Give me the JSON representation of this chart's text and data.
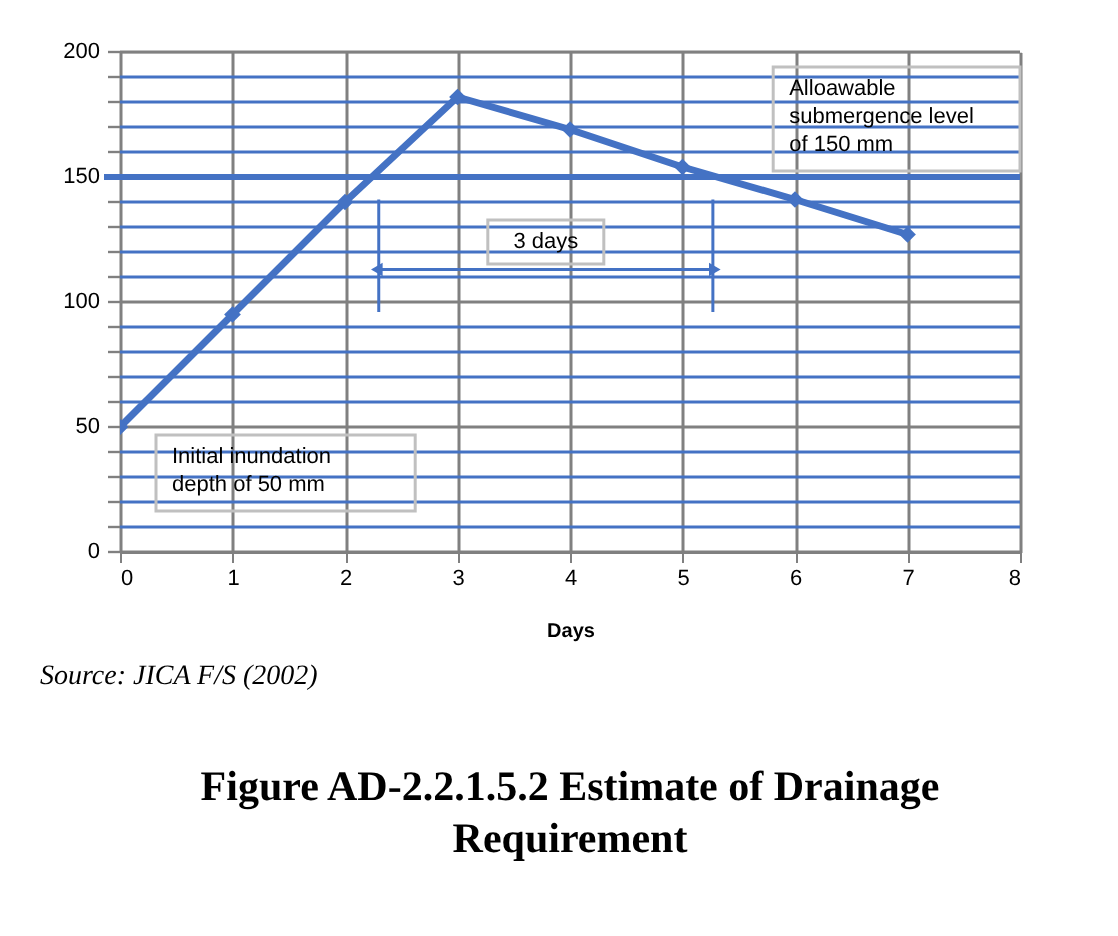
{
  "chart_data": {
    "type": "line",
    "title": "Figure AD-2.2.1.5.2   Estimate of Drainage\nRequirement",
    "xlabel": "Days",
    "x": [
      0,
      1,
      2,
      3,
      4,
      5,
      6,
      7
    ],
    "series": [
      {
        "color": "#4472c4",
        "values": [
          50,
          95,
          140,
          182,
          169,
          154,
          141,
          127
        ]
      }
    ],
    "xlim": [
      0,
      8
    ],
    "xticks": [
      0,
      1,
      2,
      3,
      4,
      5,
      6,
      7,
      8
    ],
    "ylim": [
      0,
      200
    ],
    "yticks": [
      0,
      {
        "value": 10,
        "label": null
      },
      {
        "value": 20,
        "label": null
      },
      {
        "value": 30,
        "label": null
      },
      {
        "value": 40,
        "label": null
      },
      50,
      {
        "value": 60,
        "label": null
      },
      {
        "value": 70,
        "label": null
      },
      {
        "value": 80,
        "label": null
      },
      {
        "value": 90,
        "label": null
      },
      100,
      {
        "value": 110,
        "label": null
      },
      {
        "value": 120,
        "label": null
      },
      {
        "value": 130,
        "label": null
      },
      {
        "value": 140,
        "label": null
      },
      150,
      {
        "value": 160,
        "label": null
      },
      {
        "value": 170,
        "label": null
      },
      {
        "value": 180,
        "label": null
      },
      {
        "value": 190,
        "label": null
      },
      200
    ],
    "grid": true,
    "legend": false,
    "marker": "diamond",
    "line_style": "solid",
    "ref_lines": [
      {
        "axis": "y",
        "value": 150,
        "color": "#4472c4"
      },
      {
        "axis": "x",
        "value": 2.3,
        "color": "#4472c4"
      },
      {
        "axis": "x",
        "value": 5.27,
        "color": "#4472c4"
      }
    ],
    "annotations": [
      "3 days",
      {
        "text": "Initial inundation\ndepth of 50 mm",
        "x": 0,
        "y": 50
      },
      {
        "text": "Alloawable\nsubmergence level\nof 150 mm",
        "y": 150
      },
      "Source:    JICA F/S (2002)"
    ]
  }
}
